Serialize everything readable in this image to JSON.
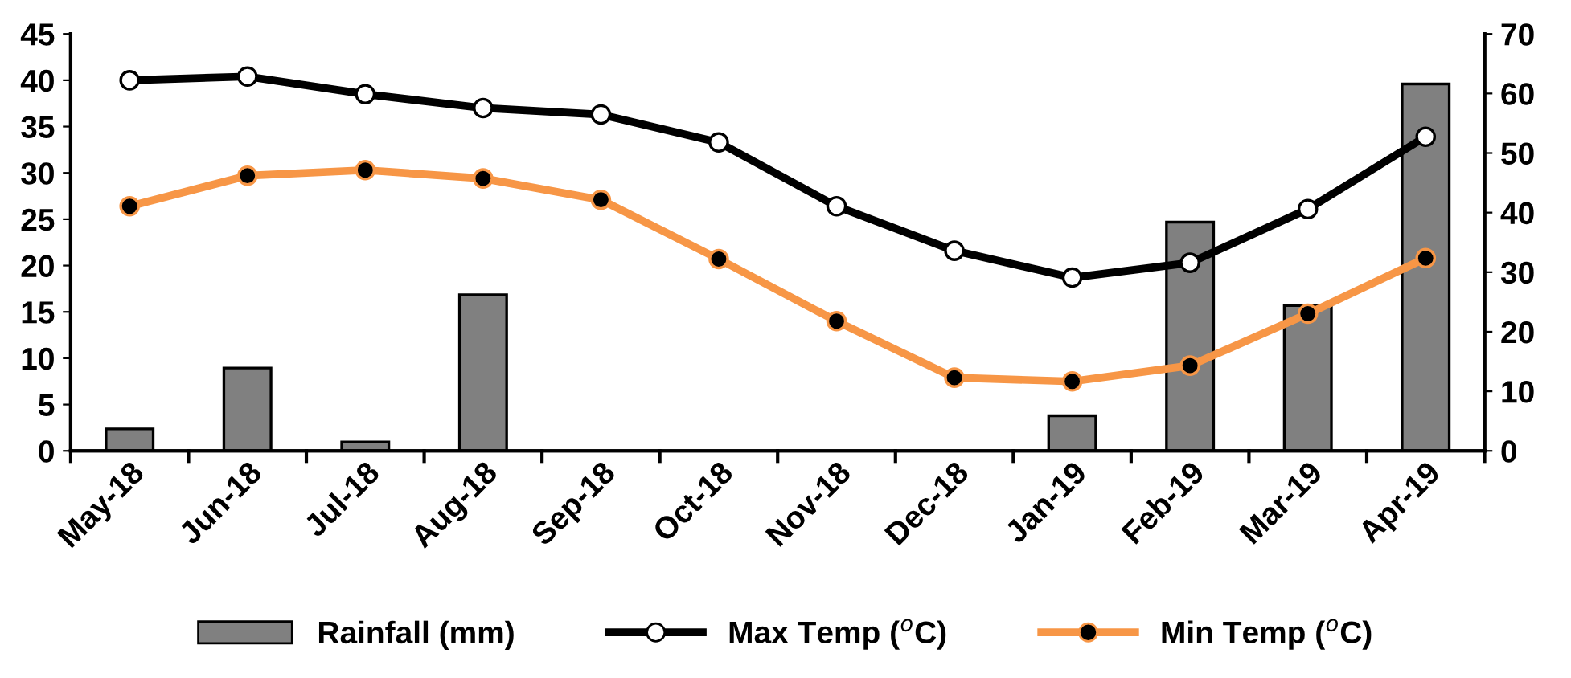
{
  "chart_data": {
    "type": "bar",
    "categories": [
      "May-18",
      "Jun-18",
      "Jul-18",
      "Aug-18",
      "Sep-18",
      "Oct-18",
      "Nov-18",
      "Dec-18",
      "Jan-19",
      "Feb-19",
      "Mar-19",
      "Apr-19"
    ],
    "series": [
      {
        "name": "Rainfall (mm)",
        "axis": "y2",
        "color": "#808080",
        "values": [
          3.7,
          13.9,
          1.5,
          26.2,
          0,
          0,
          0,
          0,
          5.9,
          38.4,
          24.4,
          61.6
        ]
      },
      {
        "name": "Max Temp ($^{o}$C)",
        "type": "line",
        "axis": "y",
        "color": "#000000",
        "marker": "circle",
        "values": [
          40.0,
          40.4,
          38.5,
          37.0,
          36.3,
          33.3,
          26.4,
          21.6,
          18.7,
          20.3,
          26.1,
          33.9
        ]
      },
      {
        "name": "Min Temp ($^{o}$C)",
        "type": "line",
        "axis": "y",
        "color": "#f79646",
        "marker": "circle",
        "values": [
          26.4,
          29.7,
          30.3,
          29.4,
          27.1,
          20.7,
          14.0,
          7.9,
          7.5,
          9.2,
          14.8,
          20.8
        ]
      }
    ],
    "ylim": [
      0,
      45
    ],
    "yticks": [
      0,
      5,
      10,
      15,
      20,
      25,
      30,
      35,
      40,
      45
    ],
    "y2lim": [
      0,
      70
    ],
    "y2ticks": [
      0,
      10,
      20,
      30,
      40,
      50,
      60,
      70
    ],
    "legend": "bottom",
    "grid": false
  }
}
